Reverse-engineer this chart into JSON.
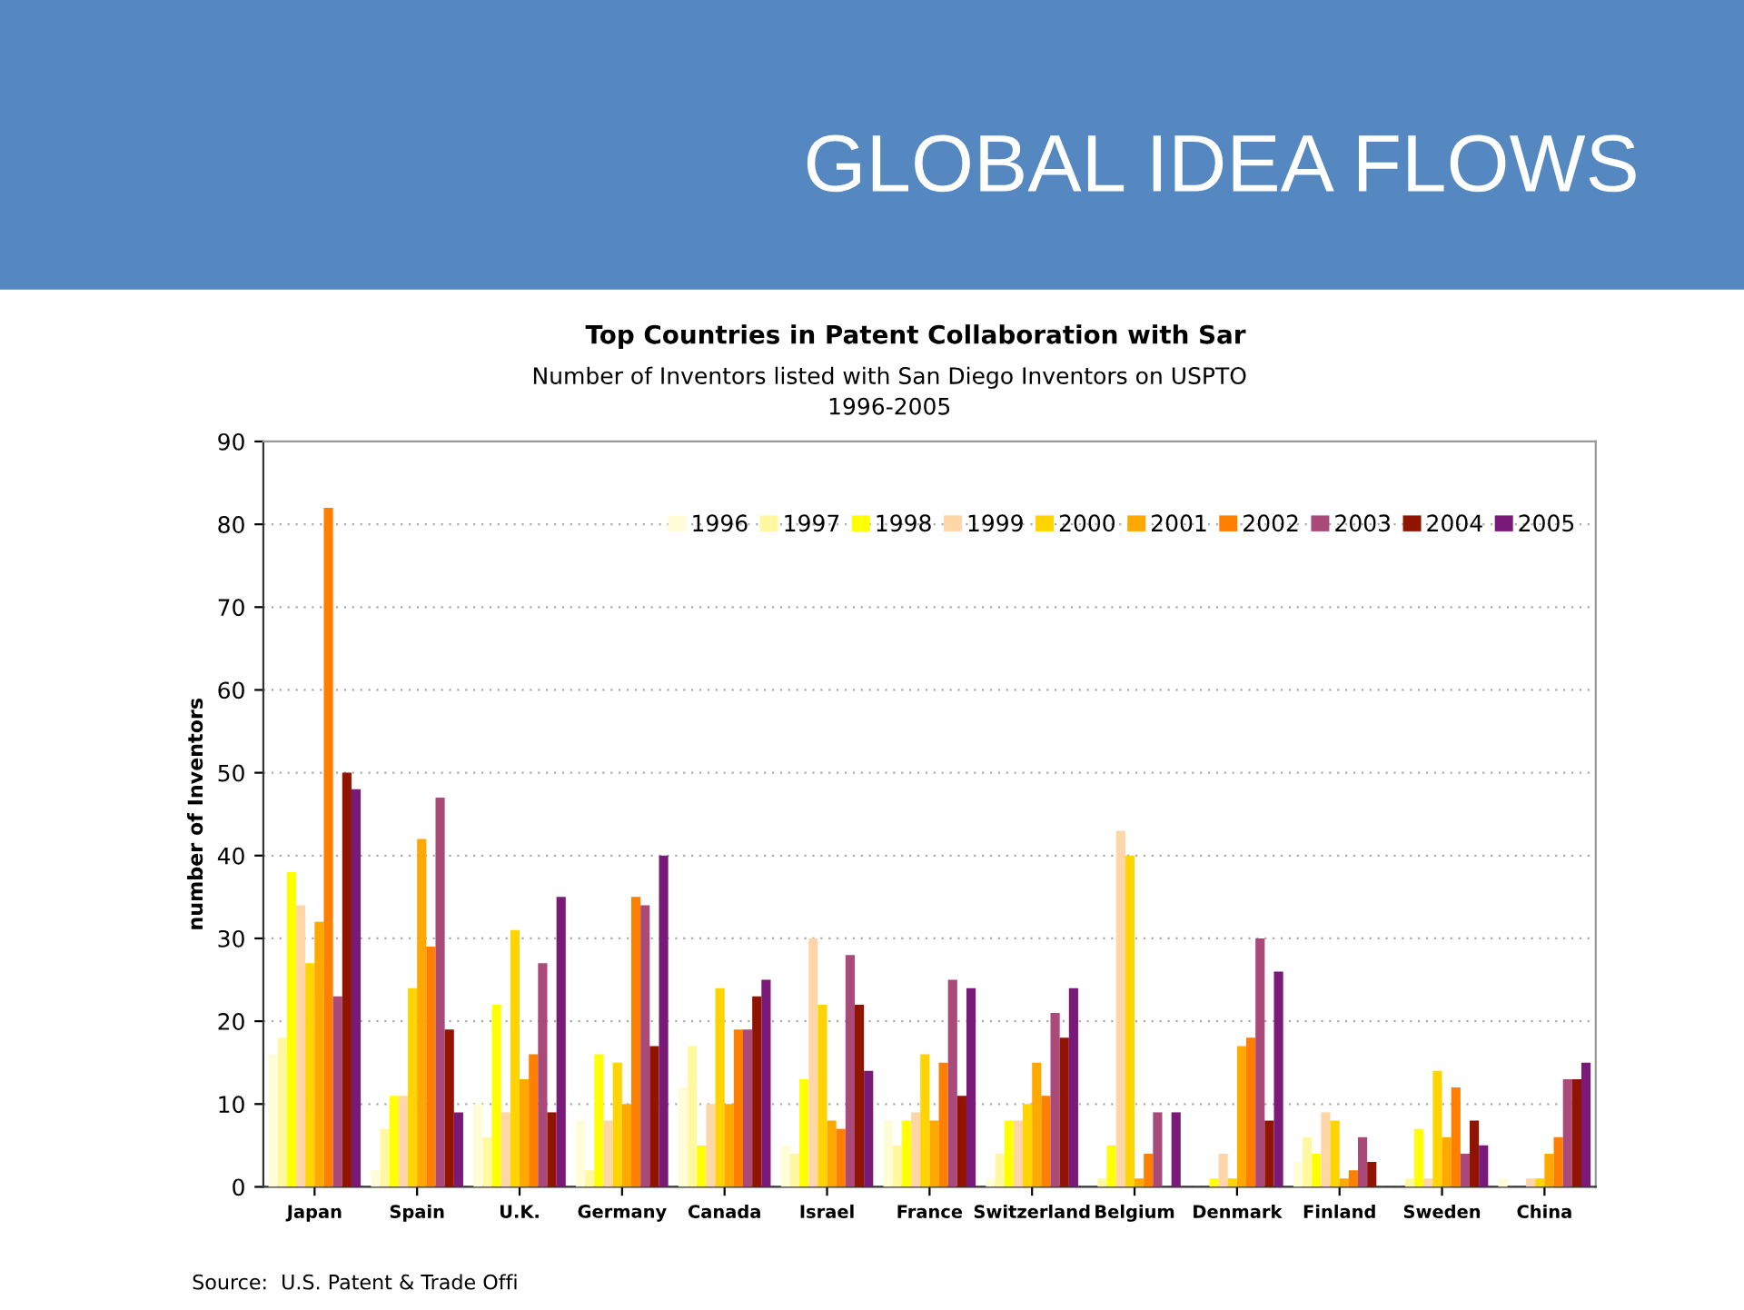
{
  "chart_data": {
    "type": "bar",
    "title": "Top Countries in Patent Collaboration with Sar",
    "subtitle": "Number of Inventors listed with San Diego Inventors on USPTO\n1996-2005",
    "ylabel": "number of Inventors",
    "annotations": [
      "GLOBAL IDEA FLOWS",
      "Source:  U.S. Patent & Trade Offi"
    ],
    "categories": [
      "Japan",
      "Spain",
      "U.K.",
      "Germany",
      "Canada",
      "Israel",
      "France",
      "Switzerland",
      "Belgium",
      "Denmark",
      "Finland",
      "Sweden",
      "China"
    ],
    "series": [
      {
        "name": "1996",
        "color": "#fffdd8",
        "values": [
          16,
          2,
          10,
          8,
          12,
          5,
          8,
          1,
          0,
          0,
          3,
          0,
          1
        ]
      },
      {
        "name": "1997",
        "color": "#fff8a0",
        "values": [
          18,
          7,
          6,
          2,
          17,
          4,
          5,
          4,
          1,
          0,
          6,
          1,
          0
        ]
      },
      {
        "name": "1998",
        "color": "#ffff00",
        "values": [
          38,
          11,
          22,
          16,
          5,
          13,
          8,
          8,
          5,
          1,
          4,
          7,
          0
        ]
      },
      {
        "name": "1999",
        "color": "#ffd6a8",
        "values": [
          34,
          11,
          9,
          8,
          10,
          30,
          9,
          8,
          43,
          4,
          9,
          1,
          1
        ]
      },
      {
        "name": "2000",
        "color": "#ffd400",
        "values": [
          27,
          24,
          31,
          15,
          24,
          22,
          16,
          10,
          40,
          1,
          8,
          14,
          1
        ]
      },
      {
        "name": "2001",
        "color": "#ffa800",
        "values": [
          32,
          42,
          13,
          10,
          10,
          8,
          8,
          15,
          1,
          17,
          1,
          6,
          4
        ]
      },
      {
        "name": "2002",
        "color": "#ff7f00",
        "values": [
          82,
          29,
          16,
          35,
          19,
          7,
          15,
          11,
          4,
          18,
          2,
          12,
          6
        ]
      },
      {
        "name": "2003",
        "color": "#aa4a7a",
        "values": [
          23,
          47,
          27,
          34,
          19,
          28,
          25,
          21,
          9,
          30,
          6,
          4,
          13
        ]
      },
      {
        "name": "2004",
        "color": "#901400",
        "values": [
          50,
          19,
          9,
          17,
          23,
          22,
          11,
          18,
          0,
          8,
          3,
          8,
          13
        ]
      },
      {
        "name": "2005",
        "color": "#7a1a78",
        "values": [
          48,
          9,
          35,
          40,
          25,
          14,
          24,
          24,
          9,
          26,
          0,
          5,
          15
        ]
      }
    ],
    "ylim": [
      0,
      90
    ],
    "yticks": [
      0,
      10,
      20,
      30,
      40,
      50,
      60,
      70,
      80,
      90
    ],
    "grid": "y",
    "legend": "top right"
  }
}
